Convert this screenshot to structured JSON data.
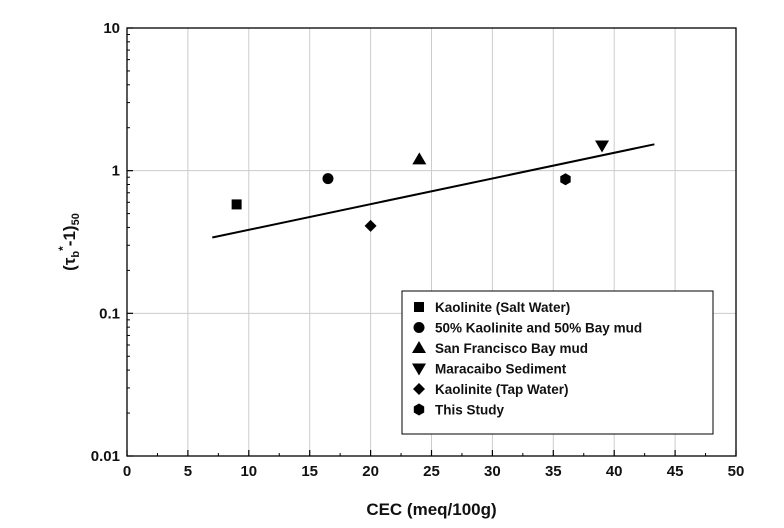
{
  "chart_data": {
    "type": "scatter",
    "xlabel": "CEC (meq/100g)",
    "ylabel": {
      "base": "(τ",
      "sub_b": "b",
      "sup": "*",
      "mid": "-1)",
      "sub_end": "50"
    },
    "xlim": [
      0,
      50
    ],
    "ylim": [
      0.01,
      10
    ],
    "yscale": "log",
    "grid": true,
    "x_ticks": [
      "0",
      "5",
      "10",
      "15",
      "20",
      "25",
      "30",
      "35",
      "40",
      "45",
      "50"
    ],
    "y_ticks": [
      "0.01",
      "0.1",
      "1",
      "10"
    ],
    "legend_position": "bottom-right",
    "series": [
      {
        "name": "Kaolinite (Salt Water)",
        "marker": "square",
        "points": [
          {
            "x": 9,
            "y": 0.58
          }
        ]
      },
      {
        "name": "50% Kaolinite and 50% Bay mud",
        "marker": "circle",
        "points": [
          {
            "x": 16.5,
            "y": 0.88
          }
        ]
      },
      {
        "name": "San Francisco Bay mud",
        "marker": "triangle-up",
        "points": [
          {
            "x": 24,
            "y": 1.2
          }
        ]
      },
      {
        "name": "Maracaibo Sediment",
        "marker": "triangle-down",
        "points": [
          {
            "x": 39,
            "y": 1.5
          }
        ]
      },
      {
        "name": "Kaolinite (Tap Water)",
        "marker": "diamond",
        "points": [
          {
            "x": 20,
            "y": 0.41
          }
        ]
      },
      {
        "name": "This Study",
        "marker": "hexagon",
        "points": [
          {
            "x": 36,
            "y": 0.87
          }
        ]
      }
    ],
    "trendline": {
      "x": [
        7,
        43.3
      ],
      "y": [
        0.34,
        1.53
      ]
    },
    "colors": {
      "marker": "#000000",
      "grid": "#cccccc",
      "frame": "#000000"
    }
  }
}
